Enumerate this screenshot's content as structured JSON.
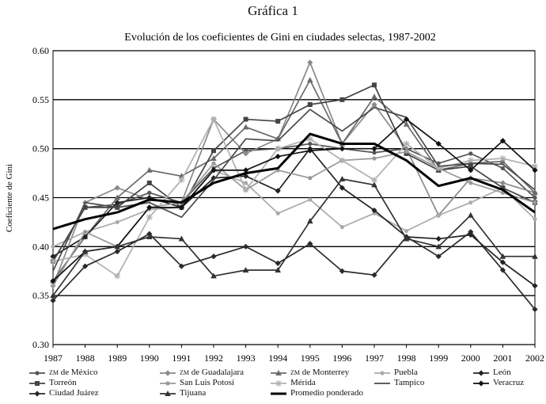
{
  "figure_label": "Gráfica 1",
  "chart_data": {
    "type": "line",
    "title": "Evolución de los coeficientes de Gini en ciudades selectas, 1987-2002",
    "xlabel": "",
    "ylabel": "Coeficiente de Gini",
    "x": [
      "1987",
      "1988",
      "1989",
      "1990",
      "1991",
      "1992",
      "1993",
      "1994",
      "1995",
      "1996",
      "1997",
      "1998",
      "1999",
      "2000",
      "2001",
      "2002"
    ],
    "ylim": [
      0.3,
      0.6
    ],
    "yticks": [
      "0.30",
      "0.35",
      "0.40",
      "0.45",
      "0.50",
      "0.55",
      "0.60"
    ],
    "grid": "horizontal",
    "legend_position": "bottom",
    "series": [
      {
        "name": "ZM de México",
        "color": "#555555",
        "marker": "dot",
        "values": [
          0.385,
          0.44,
          0.443,
          0.455,
          0.445,
          0.48,
          0.498,
          0.5,
          0.505,
          0.5,
          0.496,
          0.5,
          0.485,
          0.495,
          0.48,
          0.45
        ]
      },
      {
        "name": "ZM de Guadalajara",
        "color": "#8a8a8a",
        "marker": "diamond",
        "values": [
          0.36,
          0.445,
          0.46,
          0.448,
          0.445,
          0.53,
          0.495,
          0.51,
          0.588,
          0.505,
          0.545,
          0.5,
          0.432,
          0.47,
          0.465,
          0.455
        ]
      },
      {
        "name": "ZM de Monterrey",
        "color": "#6a6a6a",
        "marker": "triangle",
        "values": [
          0.365,
          0.41,
          0.45,
          0.478,
          0.472,
          0.49,
          0.522,
          0.51,
          0.57,
          0.505,
          0.553,
          0.525,
          0.478,
          0.485,
          0.487,
          0.455
        ]
      },
      {
        "name": "Puebla",
        "color": "#aaaaaa",
        "marker": "dot",
        "values": [
          0.4,
          0.415,
          0.425,
          0.438,
          0.44,
          0.478,
          0.465,
          0.434,
          0.448,
          0.42,
          0.434,
          0.416,
          0.432,
          0.445,
          0.46,
          0.428
        ]
      },
      {
        "name": "León",
        "color": "#222222",
        "marker": "diamond",
        "values": [
          0.39,
          0.41,
          0.445,
          0.45,
          0.44,
          0.47,
          0.472,
          0.457,
          0.5,
          0.46,
          0.437,
          0.41,
          0.408,
          0.412,
          0.384,
          0.36
        ]
      },
      {
        "name": "Torreón",
        "color": "#444444",
        "marker": "square",
        "values": [
          0.385,
          0.44,
          0.44,
          0.465,
          0.44,
          0.498,
          0.53,
          0.528,
          0.545,
          0.55,
          0.565,
          0.495,
          0.478,
          0.482,
          0.46,
          0.445
        ]
      },
      {
        "name": "San Luis Potosí",
        "color": "#999999",
        "marker": "dot",
        "values": [
          0.36,
          0.415,
          0.4,
          0.44,
          0.445,
          0.485,
          0.458,
          0.478,
          0.47,
          0.488,
          0.49,
          0.497,
          0.48,
          0.465,
          0.455,
          0.445
        ]
      },
      {
        "name": "Mérida",
        "color": "#b0b0b0",
        "marker": "star",
        "values": [
          0.385,
          0.392,
          0.37,
          0.43,
          0.468,
          0.53,
          0.458,
          0.5,
          0.51,
          0.488,
          0.468,
          0.505,
          0.48,
          0.488,
          0.49,
          0.482
        ]
      },
      {
        "name": "Tampico",
        "color": "#4a4a4a",
        "marker": "none",
        "values": [
          0.375,
          0.445,
          0.44,
          0.445,
          0.43,
          0.468,
          0.51,
          0.508,
          0.54,
          0.518,
          0.542,
          0.532,
          0.482,
          0.485,
          0.484,
          0.458
        ]
      },
      {
        "name": "Veracruz",
        "color": "#111111",
        "marker": "diamond",
        "values": [
          0.365,
          0.395,
          0.4,
          0.44,
          0.44,
          0.478,
          0.478,
          0.492,
          0.498,
          0.5,
          0.5,
          0.53,
          0.505,
          0.478,
          0.508,
          0.478
        ]
      },
      {
        "name": "Ciudad Juárez",
        "color": "#2a2a2a",
        "marker": "diamond",
        "values": [
          0.345,
          0.38,
          0.395,
          0.413,
          0.38,
          0.39,
          0.4,
          0.383,
          0.403,
          0.375,
          0.371,
          0.41,
          0.39,
          0.415,
          0.376,
          0.336
        ]
      },
      {
        "name": "Tijuana",
        "color": "#333333",
        "marker": "triangle",
        "values": [
          0.35,
          0.395,
          0.4,
          0.41,
          0.408,
          0.37,
          0.376,
          0.376,
          0.426,
          0.469,
          0.463,
          0.408,
          0.4,
          0.432,
          0.39,
          0.39
        ]
      },
      {
        "name": "Promedio ponderado",
        "color": "#000000",
        "marker": "none",
        "bold": true,
        "values": [
          0.418,
          0.428,
          0.435,
          0.448,
          0.445,
          0.465,
          0.475,
          0.48,
          0.515,
          0.505,
          0.505,
          0.488,
          0.462,
          0.47,
          0.458,
          0.435
        ]
      }
    ]
  }
}
